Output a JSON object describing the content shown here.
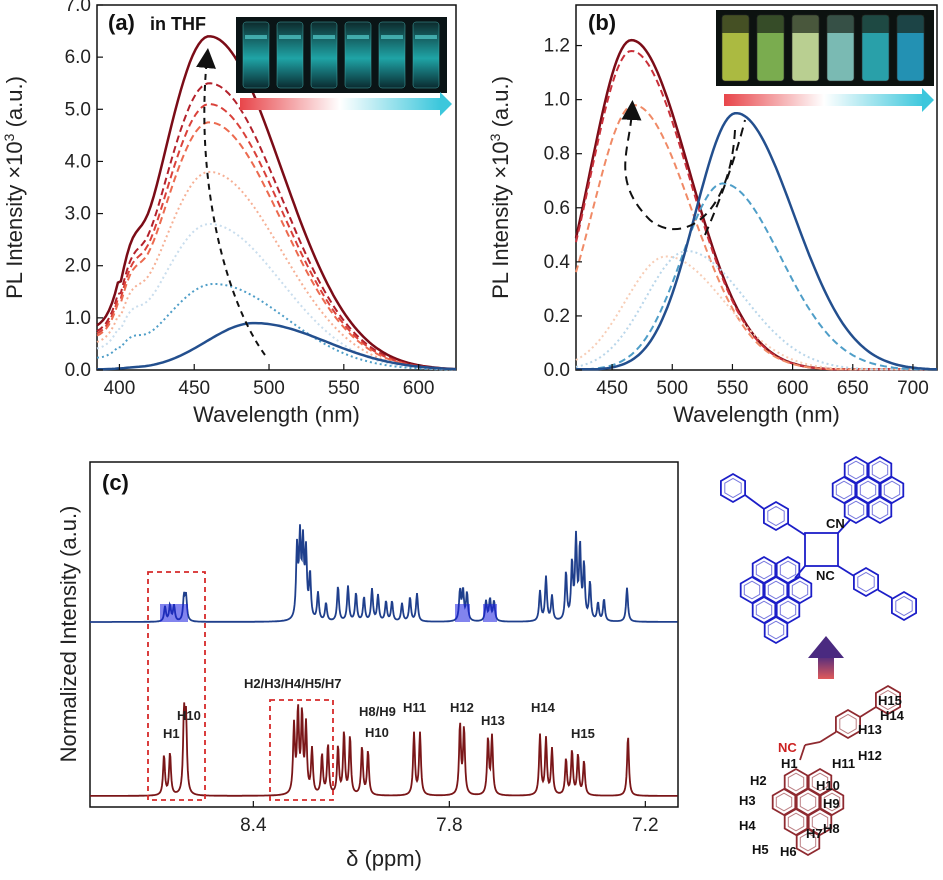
{
  "colors": {
    "red_series": [
      "#7b0c17",
      "#b3212b",
      "#d9413a",
      "#ec6a4f",
      "#f6a383",
      "#f7cdb6"
    ],
    "blue_series": [
      "#c0d9ea",
      "#8cc0dc",
      "#4f9ec8",
      "#234f8e"
    ],
    "nmr_blue": "#1f3f8c",
    "nmr_highlight": "#1b1fe0",
    "nmr_red": "#7a1618",
    "mol_blue": "#1c1ec8",
    "mol_red": "#8f2a30",
    "box": "#d62a2a"
  },
  "panel_a": {
    "label": "(a)",
    "annotation": "in THF",
    "chart_data": {
      "type": "line",
      "ylabel": "PL Intensity ×10",
      "ylabel_sup": "3",
      "ylabel_unit": " (a.u.)",
      "xlabel": "Wavelength (nm)",
      "xlim": [
        385,
        625
      ],
      "ylim": [
        0,
        7
      ],
      "xticks": [
        "400",
        "450",
        "500",
        "550",
        "600"
      ],
      "yticks": [
        "0.0",
        "1.0",
        "2.0",
        "3.0",
        "4.0",
        "5.0",
        "6.0",
        "7.0"
      ],
      "series": [
        {
          "peak": 6.4,
          "center": 460,
          "shoulder": 2.2,
          "style": "solid"
        },
        {
          "peak": 5.5,
          "center": 460,
          "shoulder": 1.95,
          "style": "dash"
        },
        {
          "peak": 5.1,
          "center": 460,
          "shoulder": 1.85,
          "style": "dash"
        },
        {
          "peak": 4.75,
          "center": 460,
          "shoulder": 1.75,
          "style": "dash"
        },
        {
          "peak": 3.8,
          "center": 460,
          "shoulder": 1.45,
          "style": "dot"
        },
        {
          "peak": 2.8,
          "center": 460,
          "shoulder": 1.15,
          "style": "dot"
        },
        {
          "peak": 1.65,
          "center": 463,
          "shoulder": 0.75,
          "style": "dot"
        },
        {
          "peak": 0.9,
          "center": 490,
          "shoulder": 0.05,
          "style": "solid"
        }
      ]
    }
  },
  "panel_b": {
    "label": "(b)",
    "chart_data": {
      "type": "line",
      "ylabel": "PL Intensity ×10",
      "ylabel_sup": "3",
      "ylabel_unit": " (a.u.)",
      "xlabel": "Wavelength (nm)",
      "xlim": [
        420,
        720
      ],
      "ylim": [
        0,
        1.35
      ],
      "xticks": [
        "450",
        "500",
        "550",
        "600",
        "650",
        "700"
      ],
      "yticks": [
        "0.0",
        "0.2",
        "0.4",
        "0.6",
        "0.8",
        "1.0",
        "1.2"
      ],
      "series": [
        {
          "peak": 1.22,
          "center": 466,
          "style": "solid"
        },
        {
          "peak": 1.18,
          "center": 466,
          "style": "dash"
        },
        {
          "peak": 0.98,
          "center": 468,
          "style": "dash"
        },
        {
          "peak": 0.42,
          "center": 495,
          "style": "dot"
        },
        {
          "peak": 0.44,
          "center": 512,
          "style": "dot"
        },
        {
          "peak": 0.69,
          "center": 542,
          "style": "dash"
        },
        {
          "peak": 0.95,
          "center": 553,
          "style": "solid"
        }
      ]
    }
  },
  "panel_c": {
    "label": "(c)",
    "chart_data": {
      "type": "line",
      "ylabel": "Normalized Intensity (a.u.)",
      "xlabel": "δ (ppm)",
      "xlim": [
        8.9,
        7.1
      ],
      "xticks": [
        "8.4",
        "7.8",
        "7.2"
      ],
      "peak_labels": [
        "H1",
        "H10",
        "H2/H3/H4/H5/H7",
        "H8/H9",
        "H10",
        "H11",
        "H12",
        "H13",
        "H14",
        "H15"
      ]
    }
  },
  "molecule": {
    "top_labels": [
      "CN",
      "NC"
    ],
    "bottom_labels": [
      "NC",
      "H1",
      "H2",
      "H3",
      "H4",
      "H5",
      "H6",
      "H7",
      "H8",
      "H9",
      "H10",
      "H11",
      "H12",
      "H13",
      "H14",
      "H15"
    ]
  }
}
